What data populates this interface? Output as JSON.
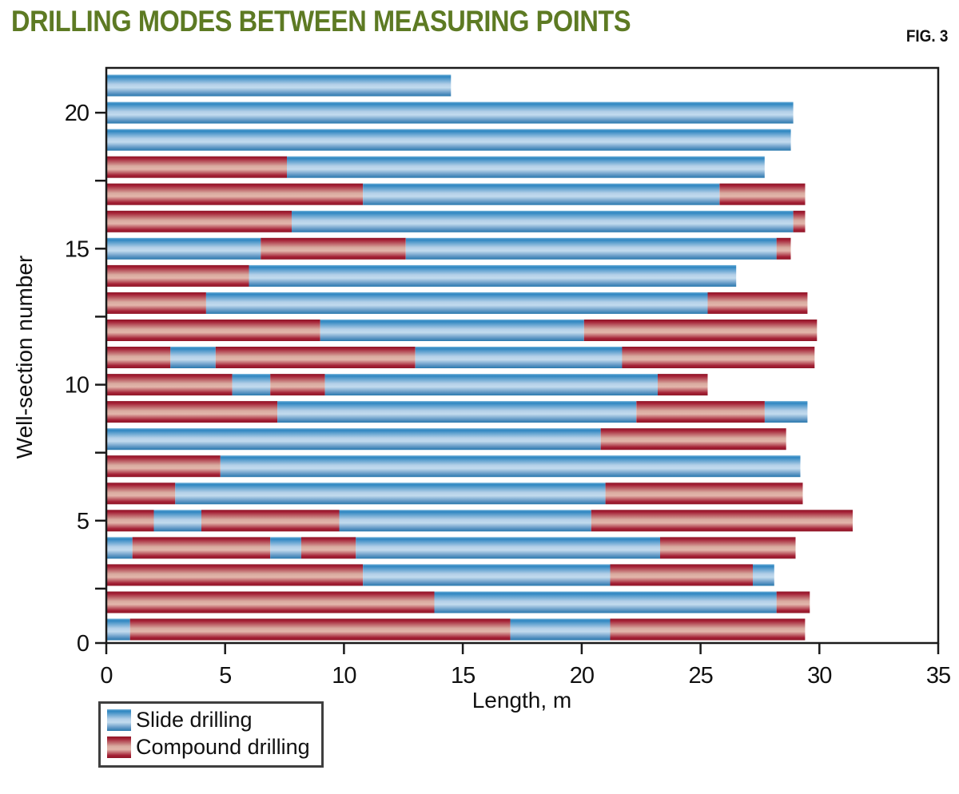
{
  "figure": {
    "title": "DRILLING MODES BETWEEN MEASURING POINTS",
    "fig_label": "FIG. 3",
    "title_color": "#5d7a23"
  },
  "chart_data": {
    "type": "bar",
    "orientation": "horizontal",
    "stacked": true,
    "title": "DRILLING MODES BETWEEN MEASURING POINTS",
    "xlabel": "Length, m",
    "ylabel": "Well-section number",
    "xlim": [
      0,
      35
    ],
    "x_ticks": [
      0,
      5,
      10,
      15,
      20,
      25,
      30,
      35
    ],
    "y_ticks_labeled": [
      0,
      5,
      10,
      15,
      20
    ],
    "y_ticks_minor": [
      2.5,
      7.5,
      12.5,
      17.5
    ],
    "grid": false,
    "legend_position": "bottom-left",
    "legend": [
      {
        "name": "Slide drilling",
        "key": "slide",
        "color": "#2e86c1"
      },
      {
        "name": "Compound drilling",
        "key": "compound",
        "color": "#a62136"
      }
    ],
    "units": "m",
    "wells": [
      {
        "well": 1,
        "segments": [
          [
            "slide",
            0,
            1.0
          ],
          [
            "compound",
            1.0,
            17.0
          ],
          [
            "slide",
            17.0,
            21.2
          ],
          [
            "compound",
            21.2,
            29.4
          ]
        ]
      },
      {
        "well": 2,
        "segments": [
          [
            "compound",
            0,
            13.8
          ],
          [
            "slide",
            13.8,
            28.2
          ],
          [
            "compound",
            28.2,
            29.6
          ]
        ]
      },
      {
        "well": 3,
        "segments": [
          [
            "compound",
            0,
            10.8
          ],
          [
            "slide",
            10.8,
            21.2
          ],
          [
            "compound",
            21.2,
            27.2
          ],
          [
            "slide",
            27.2,
            28.1
          ]
        ]
      },
      {
        "well": 4,
        "segments": [
          [
            "slide",
            0,
            1.1
          ],
          [
            "compound",
            1.1,
            6.9
          ],
          [
            "slide",
            6.9,
            8.2
          ],
          [
            "compound",
            8.2,
            10.5
          ],
          [
            "slide",
            10.5,
            23.3
          ],
          [
            "compound",
            23.3,
            29.0
          ]
        ]
      },
      {
        "well": 5,
        "segments": [
          [
            "compound",
            0,
            2.0
          ],
          [
            "slide",
            2.0,
            4.0
          ],
          [
            "compound",
            4.0,
            9.8
          ],
          [
            "slide",
            9.8,
            20.4
          ],
          [
            "compound",
            20.4,
            31.4
          ]
        ]
      },
      {
        "well": 6,
        "segments": [
          [
            "compound",
            0,
            2.9
          ],
          [
            "slide",
            2.9,
            21.0
          ],
          [
            "compound",
            21.0,
            29.3
          ]
        ]
      },
      {
        "well": 7,
        "segments": [
          [
            "compound",
            0,
            4.8
          ],
          [
            "slide",
            4.8,
            29.2
          ]
        ]
      },
      {
        "well": 8,
        "segments": [
          [
            "slide",
            0,
            20.8
          ],
          [
            "compound",
            20.8,
            28.6
          ]
        ]
      },
      {
        "well": 9,
        "segments": [
          [
            "compound",
            0,
            7.2
          ],
          [
            "slide",
            7.2,
            22.3
          ],
          [
            "compound",
            22.3,
            27.7
          ],
          [
            "slide",
            27.7,
            29.5
          ]
        ]
      },
      {
        "well": 10,
        "segments": [
          [
            "compound",
            0,
            5.3
          ],
          [
            "slide",
            5.3,
            6.9
          ],
          [
            "compound",
            6.9,
            9.2
          ],
          [
            "slide",
            9.2,
            23.2
          ],
          [
            "compound",
            23.2,
            25.3
          ]
        ]
      },
      {
        "well": 11,
        "segments": [
          [
            "compound",
            0,
            2.7
          ],
          [
            "slide",
            2.7,
            4.6
          ],
          [
            "compound",
            4.6,
            13.0
          ],
          [
            "slide",
            13.0,
            21.7
          ],
          [
            "compound",
            21.7,
            29.8
          ]
        ]
      },
      {
        "well": 12,
        "segments": [
          [
            "compound",
            0,
            9.0
          ],
          [
            "slide",
            9.0,
            20.1
          ],
          [
            "compound",
            20.1,
            29.9
          ]
        ]
      },
      {
        "well": 13,
        "segments": [
          [
            "compound",
            0,
            4.2
          ],
          [
            "slide",
            4.2,
            25.3
          ],
          [
            "compound",
            25.3,
            29.5
          ]
        ]
      },
      {
        "well": 14,
        "segments": [
          [
            "compound",
            0,
            6.0
          ],
          [
            "slide",
            6.0,
            26.5
          ]
        ]
      },
      {
        "well": 15,
        "segments": [
          [
            "slide",
            0,
            6.5
          ],
          [
            "compound",
            6.5,
            12.6
          ],
          [
            "slide",
            12.6,
            28.2
          ],
          [
            "compound",
            28.2,
            28.8
          ]
        ]
      },
      {
        "well": 16,
        "segments": [
          [
            "compound",
            0,
            7.8
          ],
          [
            "slide",
            7.8,
            28.9
          ],
          [
            "compound",
            28.9,
            29.4
          ]
        ]
      },
      {
        "well": 17,
        "segments": [
          [
            "compound",
            0,
            10.8
          ],
          [
            "slide",
            10.8,
            25.8
          ],
          [
            "compound",
            25.8,
            29.4
          ]
        ]
      },
      {
        "well": 18,
        "segments": [
          [
            "compound",
            0,
            7.6
          ],
          [
            "slide",
            7.6,
            27.7
          ]
        ]
      },
      {
        "well": 19,
        "segments": [
          [
            "slide",
            0,
            28.8
          ]
        ]
      },
      {
        "well": 20,
        "segments": [
          [
            "slide",
            0,
            28.9
          ]
        ]
      },
      {
        "well": 21,
        "segments": [
          [
            "slide",
            0,
            14.5
          ]
        ]
      }
    ]
  },
  "colors": {
    "slide_dark": "#2e86c1",
    "slide_light": "#c2dbee",
    "compound_dark": "#8f1728",
    "compound_light": "#e3b6ab",
    "frame": "#1a1a1a",
    "text": "#111111"
  }
}
